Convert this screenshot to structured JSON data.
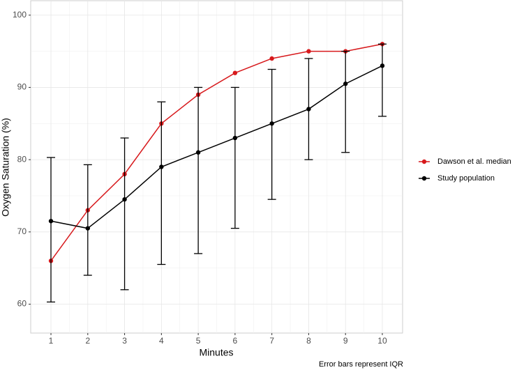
{
  "chart_data": {
    "type": "line",
    "x_label": "Minutes",
    "y_label": "Oxygen Saturation (%)",
    "caption": "Error bars represent IQR",
    "x": [
      1,
      2,
      3,
      4,
      5,
      6,
      7,
      8,
      9,
      10
    ],
    "series": [
      {
        "name": "Dawson et al. median",
        "color": "#d7191c",
        "values": [
          66,
          73,
          78,
          85,
          89,
          92,
          94,
          95,
          95,
          96
        ]
      },
      {
        "name": "Study population",
        "color": "#000000",
        "values": [
          71.5,
          70.5,
          74.5,
          79,
          81,
          83,
          85,
          87,
          90.5,
          93
        ],
        "lower": [
          60.3,
          64,
          62,
          65.5,
          67,
          70.5,
          74.5,
          80,
          81,
          86
        ],
        "upper": [
          80.3,
          79.3,
          83,
          88,
          90,
          90,
          92.5,
          94,
          95,
          96
        ]
      }
    ],
    "xlim": [
      0.45,
      10.55
    ],
    "xticks": [
      1,
      2,
      3,
      4,
      5,
      6,
      7,
      8,
      9,
      10
    ],
    "x_minor_ticks": [
      1.5,
      2.5,
      3.5,
      4.5,
      5.5,
      6.5,
      7.5,
      8.5,
      9.5
    ],
    "ylim": [
      56,
      102
    ],
    "yticks": [
      60,
      70,
      80,
      90,
      100
    ],
    "y_minor_ticks": [
      65,
      75,
      85,
      95
    ],
    "grid": true,
    "legend_position": "right"
  }
}
